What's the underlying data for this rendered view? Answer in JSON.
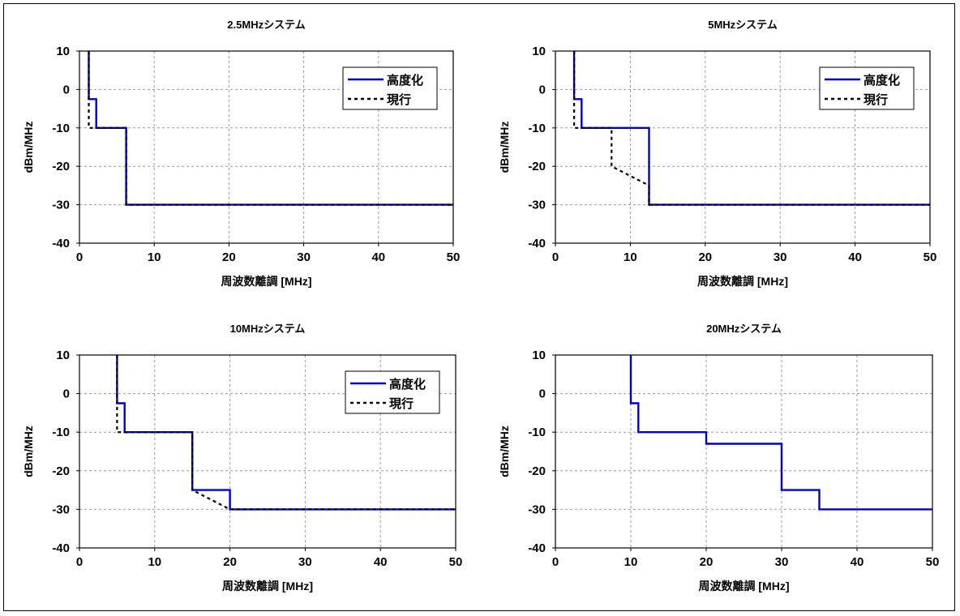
{
  "chart_data": [
    {
      "type": "line",
      "title": "2.5MHzシステム",
      "xlabel": "周波数離調 [MHz]",
      "ylabel": "dBm/MHz",
      "xlim": [
        0,
        50
      ],
      "ylim": [
        -40,
        10
      ],
      "xticks": [
        "0",
        "10",
        "20",
        "30",
        "40",
        "50"
      ],
      "yticks": [
        "10",
        "0",
        "-10",
        "-20",
        "-30",
        "-40"
      ],
      "grid": true,
      "legend": "top-right",
      "series": [
        {
          "name": "高度化",
          "color": "#0000cc",
          "style": "solid",
          "x": [
            1.25,
            1.25,
            2.25,
            2.25,
            6.25,
            6.25,
            50
          ],
          "y": [
            10,
            -2.5,
            -2.5,
            -10,
            -10,
            -30,
            -30
          ]
        },
        {
          "name": "現行",
          "color": "#000000",
          "style": "dashed",
          "x": [
            1.25,
            1.25,
            6.25,
            6.25,
            50
          ],
          "y": [
            10,
            -10,
            -10,
            -30,
            -30
          ]
        }
      ]
    },
    {
      "type": "line",
      "title": "5MHzシステム",
      "xlabel": "周波数離調 [MHz]",
      "ylabel": "dBm/MHz",
      "xlim": [
        0,
        50
      ],
      "ylim": [
        -40,
        10
      ],
      "xticks": [
        "0",
        "10",
        "20",
        "30",
        "40",
        "50"
      ],
      "yticks": [
        "10",
        "0",
        "-10",
        "-20",
        "-30",
        "-40"
      ],
      "grid": true,
      "legend": "top-right",
      "series": [
        {
          "name": "高度化",
          "color": "#0000cc",
          "style": "solid",
          "x": [
            2.5,
            2.5,
            3.5,
            3.5,
            12.5,
            12.5,
            50
          ],
          "y": [
            10,
            -2.5,
            -2.5,
            -10,
            -10,
            -30,
            -30
          ]
        },
        {
          "name": "現行",
          "color": "#000000",
          "style": "dashed",
          "x": [
            2.5,
            2.5,
            7.5,
            7.5,
            12.5,
            12.5,
            50
          ],
          "y": [
            10,
            -10,
            -10,
            -20,
            -25,
            -30,
            -30
          ]
        }
      ]
    },
    {
      "type": "line",
      "title": "10MHzシステム",
      "xlabel": "周波数離調 [MHz]",
      "ylabel": "dBm/MHz",
      "xlim": [
        0,
        50
      ],
      "ylim": [
        -40,
        10
      ],
      "xticks": [
        "0",
        "10",
        "20",
        "30",
        "40",
        "50"
      ],
      "yticks": [
        "10",
        "0",
        "-10",
        "-20",
        "-30",
        "-40"
      ],
      "grid": true,
      "legend": "top-right",
      "series": [
        {
          "name": "高度化",
          "color": "#0000cc",
          "style": "solid",
          "x": [
            5,
            5,
            6,
            6,
            15,
            15,
            20,
            20,
            50
          ],
          "y": [
            10,
            -2.5,
            -2.5,
            -10,
            -10,
            -25,
            -25,
            -30,
            -30
          ]
        },
        {
          "name": "現行",
          "color": "#000000",
          "style": "dashed",
          "x": [
            5,
            5,
            15,
            15,
            20,
            50
          ],
          "y": [
            10,
            -10,
            -10,
            -25,
            -30,
            -30
          ]
        }
      ]
    },
    {
      "type": "line",
      "title": "20MHzシステム",
      "xlabel": "周波数離調 [MHz]",
      "ylabel": "dBm/MHz",
      "xlim": [
        0,
        50
      ],
      "ylim": [
        -40,
        10
      ],
      "xticks": [
        "0",
        "10",
        "20",
        "30",
        "40",
        "50"
      ],
      "yticks": [
        "10",
        "0",
        "-10",
        "-20",
        "-30",
        "-40"
      ],
      "grid": true,
      "legend": "none",
      "series": [
        {
          "color": "#0000cc",
          "style": "solid",
          "x": [
            10,
            10,
            11,
            11,
            20,
            20,
            30,
            30,
            35,
            35,
            50
          ],
          "y": [
            10,
            -2.5,
            -2.5,
            -10,
            -10,
            -13,
            -13,
            -25,
            -25,
            -30,
            -30
          ]
        }
      ]
    }
  ]
}
